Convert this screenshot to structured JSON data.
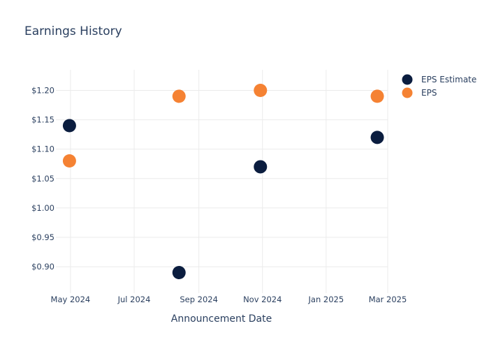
{
  "colors": {
    "estimate": "#0b1d3f",
    "eps": "#f58233",
    "grid": "#ebebeb",
    "text": "#2a3f5f"
  },
  "chart_data": {
    "type": "scatter",
    "title": "Earnings History",
    "xlabel": "Announcement Date",
    "ylabel": "",
    "x_tick_labels": [
      "May 2024",
      "Jul 2024",
      "Sep 2024",
      "Nov 2024",
      "Jan 2025",
      "Mar 2025"
    ],
    "x_tick_dates": [
      "2024-05-01",
      "2024-07-01",
      "2024-09-01",
      "2024-11-01",
      "2025-01-01",
      "2025-03-01"
    ],
    "xlim": [
      "2024-04-17",
      "2025-03-01"
    ],
    "y_tick_labels": [
      "$0.90",
      "$0.95",
      "$1.00",
      "$1.05",
      "$1.10",
      "$1.15",
      "$1.20"
    ],
    "y_tick_values": [
      0.9,
      0.95,
      1.0,
      1.05,
      1.1,
      1.15,
      1.2
    ],
    "ylim": [
      0.855,
      1.235
    ],
    "grid": true,
    "legend_position": "top-right",
    "series": [
      {
        "name": "EPS Estimate",
        "color_key": "estimate",
        "points": [
          {
            "x": "2024-04-30",
            "y": 1.14
          },
          {
            "x": "2024-08-13",
            "y": 0.89
          },
          {
            "x": "2024-10-30",
            "y": 1.07
          },
          {
            "x": "2025-02-19",
            "y": 1.12
          }
        ]
      },
      {
        "name": "EPS",
        "color_key": "eps",
        "points": [
          {
            "x": "2024-04-30",
            "y": 1.08
          },
          {
            "x": "2024-08-13",
            "y": 1.19
          },
          {
            "x": "2024-10-30",
            "y": 1.2
          },
          {
            "x": "2025-02-19",
            "y": 1.19
          }
        ]
      }
    ]
  }
}
